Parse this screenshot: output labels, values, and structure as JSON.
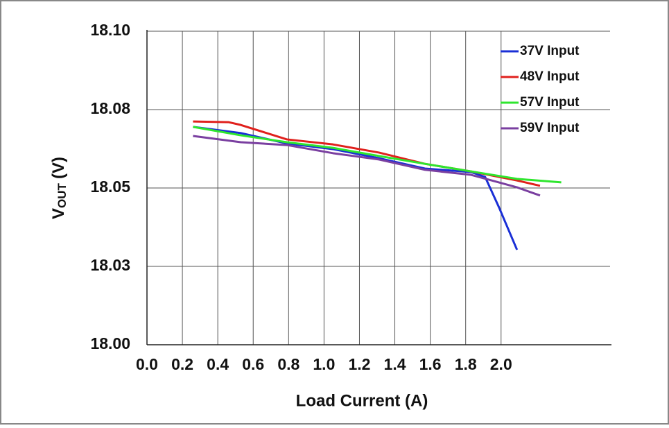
{
  "chart_data": {
    "type": "line",
    "x_label": "Load Current (A)",
    "y_label": "V",
    "y_label_sub": "OUT",
    "y_label_unit": "(V)",
    "xlim": [
      0,
      2.6
    ],
    "xticks": [
      {
        "value": 0,
        "label": "0.0"
      },
      0.2,
      0.4,
      0.6,
      0.8,
      {
        "value": 1,
        "label": "1.0"
      },
      1.2,
      1.4,
      1.6,
      1.8,
      {
        "value": 2,
        "label": "2.0"
      }
    ],
    "ylim": [
      18.0,
      18.1
    ],
    "yticks": [
      {
        "value": 18.0,
        "label": "18.00"
      },
      {
        "value": 18.025,
        "label": "18.03"
      },
      {
        "value": 18.05,
        "label": "18.05"
      },
      {
        "value": 18.075,
        "label": "18.08"
      },
      {
        "value": 18.1,
        "label": "18.10"
      }
    ],
    "grid": true,
    "legend": "upper right",
    "series": [
      {
        "name": "37V Input",
        "color": "#1a2fd6",
        "x": [
          0.26,
          0.53,
          0.79,
          1.05,
          1.31,
          1.57,
          1.83,
          1.91,
          1.99,
          2.09
        ],
        "values": [
          18.0695,
          18.0675,
          18.0642,
          18.0624,
          18.0595,
          18.0562,
          18.0551,
          18.0535,
          18.0436,
          18.0303
        ]
      },
      {
        "name": "48V Input",
        "color": "#e0201c",
        "x": [
          0.26,
          0.46,
          0.53,
          0.79,
          1.05,
          1.31,
          1.57,
          1.83,
          2.09,
          2.22
        ],
        "values": [
          18.0712,
          18.071,
          18.0701,
          18.0655,
          18.0639,
          18.0613,
          18.0577,
          18.0553,
          18.0524,
          18.0507
        ]
      },
      {
        "name": "57V Input",
        "color": "#2ee62e",
        "x": [
          0.26,
          0.53,
          0.79,
          1.05,
          1.31,
          1.57,
          1.83,
          2.09,
          2.34
        ],
        "values": [
          18.0695,
          18.0668,
          18.0646,
          18.0628,
          18.0602,
          18.0577,
          18.0553,
          18.0529,
          18.0518
        ]
      },
      {
        "name": "59V Input",
        "color": "#7a3fa0",
        "x": [
          0.26,
          0.53,
          0.79,
          1.05,
          1.31,
          1.57,
          1.83,
          2.09,
          2.22
        ],
        "values": [
          18.0666,
          18.0646,
          18.0637,
          18.0611,
          18.0591,
          18.0558,
          18.0542,
          18.0502,
          18.0476
        ]
      }
    ]
  }
}
